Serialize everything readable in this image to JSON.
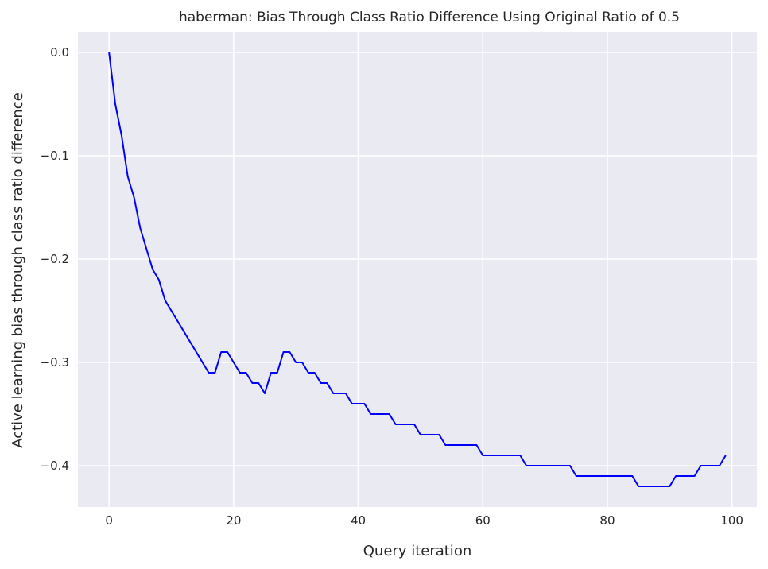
{
  "chart_data": {
    "type": "line",
    "title": "haberman: Bias Through Class Ratio Difference Using Original Ratio of 0.5",
    "xlabel": "Query iteration",
    "ylabel": "Active learning bias through class ratio difference",
    "xlim": [
      -5,
      104
    ],
    "ylim": [
      -0.44,
      0.02
    ],
    "xticks": [
      0,
      20,
      40,
      60,
      80,
      100
    ],
    "yticks": [
      0.0,
      -0.1,
      -0.2,
      -0.3,
      -0.4
    ],
    "xtick_labels": [
      "0",
      "20",
      "40",
      "60",
      "80",
      "100"
    ],
    "ytick_labels": [
      "0.0",
      "−0.1",
      "−0.2",
      "−0.3",
      "−0.4"
    ],
    "grid": true,
    "background": "#EAEAF2",
    "series": [
      {
        "color": "#0000FF",
        "x": [
          0,
          1,
          2,
          3,
          4,
          5,
          6,
          7,
          8,
          9,
          10,
          11,
          12,
          13,
          14,
          15,
          16,
          17,
          18,
          19,
          20,
          21,
          22,
          23,
          24,
          25,
          26,
          27,
          28,
          29,
          30,
          31,
          32,
          33,
          34,
          35,
          36,
          37,
          38,
          39,
          40,
          41,
          42,
          43,
          44,
          45,
          46,
          47,
          48,
          49,
          50,
          51,
          52,
          53,
          54,
          55,
          56,
          57,
          58,
          59,
          60,
          61,
          62,
          63,
          64,
          65,
          66,
          67,
          68,
          69,
          70,
          71,
          72,
          73,
          74,
          75,
          76,
          77,
          78,
          79,
          80,
          81,
          82,
          83,
          84,
          85,
          86,
          87,
          88,
          89,
          90,
          91,
          92,
          93,
          94,
          95,
          96,
          97,
          98,
          99
        ],
        "values": [
          0.0,
          -0.05,
          -0.08,
          -0.12,
          -0.14,
          -0.17,
          -0.19,
          -0.21,
          -0.22,
          -0.24,
          -0.25,
          -0.26,
          -0.27,
          -0.28,
          -0.29,
          -0.3,
          -0.31,
          -0.31,
          -0.29,
          -0.29,
          -0.3,
          -0.31,
          -0.31,
          -0.32,
          -0.32,
          -0.33,
          -0.31,
          -0.31,
          -0.29,
          -0.29,
          -0.3,
          -0.3,
          -0.31,
          -0.31,
          -0.32,
          -0.32,
          -0.33,
          -0.33,
          -0.33,
          -0.34,
          -0.34,
          -0.34,
          -0.35,
          -0.35,
          -0.35,
          -0.35,
          -0.36,
          -0.36,
          -0.36,
          -0.36,
          -0.37,
          -0.37,
          -0.37,
          -0.37,
          -0.38,
          -0.38,
          -0.38,
          -0.38,
          -0.38,
          -0.38,
          -0.39,
          -0.39,
          -0.39,
          -0.39,
          -0.39,
          -0.39,
          -0.39,
          -0.4,
          -0.4,
          -0.4,
          -0.4,
          -0.4,
          -0.4,
          -0.4,
          -0.4,
          -0.41,
          -0.41,
          -0.41,
          -0.41,
          -0.41,
          -0.41,
          -0.41,
          -0.41,
          -0.41,
          -0.41,
          -0.42,
          -0.42,
          -0.42,
          -0.42,
          -0.42,
          -0.42,
          -0.41,
          -0.41,
          -0.41,
          -0.41,
          -0.4,
          -0.4,
          -0.4,
          -0.4,
          -0.39
        ]
      }
    ]
  }
}
